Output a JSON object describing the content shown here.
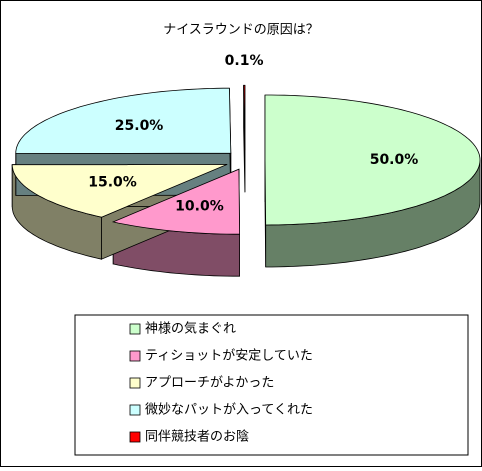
{
  "chart_data": {
    "type": "pie",
    "title": "ナイスラウンドの原因は？",
    "categories": [
      "神様の気まぐれ",
      "ティショットが安定していた",
      "アプローチがよかった",
      "微妙なパットが入ってくれた",
      "同伴競技者のお陰"
    ],
    "values": [
      50,
      10,
      15,
      25,
      0.1
    ],
    "value_labels": [
      "50.0%",
      "10.0%",
      "15.0%",
      "25.0%",
      "0.1%"
    ],
    "colors": [
      "#ccffcc",
      "#ff99cc",
      "#ffffcc",
      "#ccffff",
      "#ff0000"
    ],
    "legend": "bottom",
    "exploded": true,
    "three_d": true
  }
}
